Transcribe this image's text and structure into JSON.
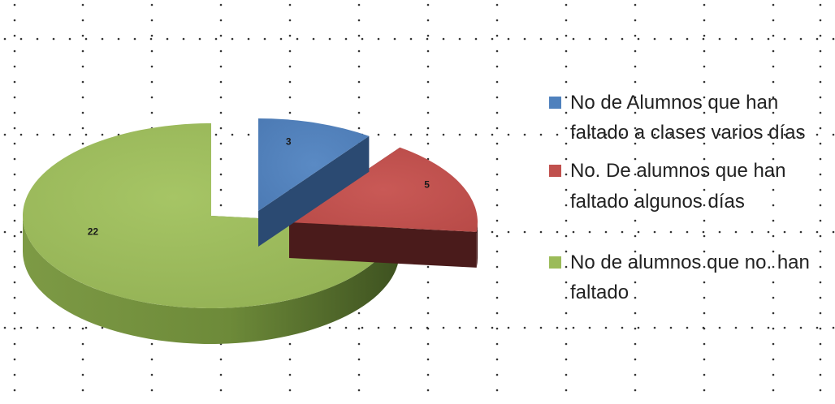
{
  "chart_data": {
    "type": "pie",
    "style": "3d-exploded",
    "grid": "dotted",
    "legend_position": "right",
    "slices": [
      {
        "label": "No de Alumnos que han faltado a clases varios días",
        "value": 3,
        "data_label": "3",
        "color": "#4F81BD"
      },
      {
        "label": "No. De alumnos que han faltado algunos días",
        "value": 5,
        "data_label": "5",
        "color": "#C0504D"
      },
      {
        "label": "No de alumnos que no. han faltado",
        "value": 22,
        "data_label": "22",
        "color": "#9BBB59"
      }
    ]
  }
}
